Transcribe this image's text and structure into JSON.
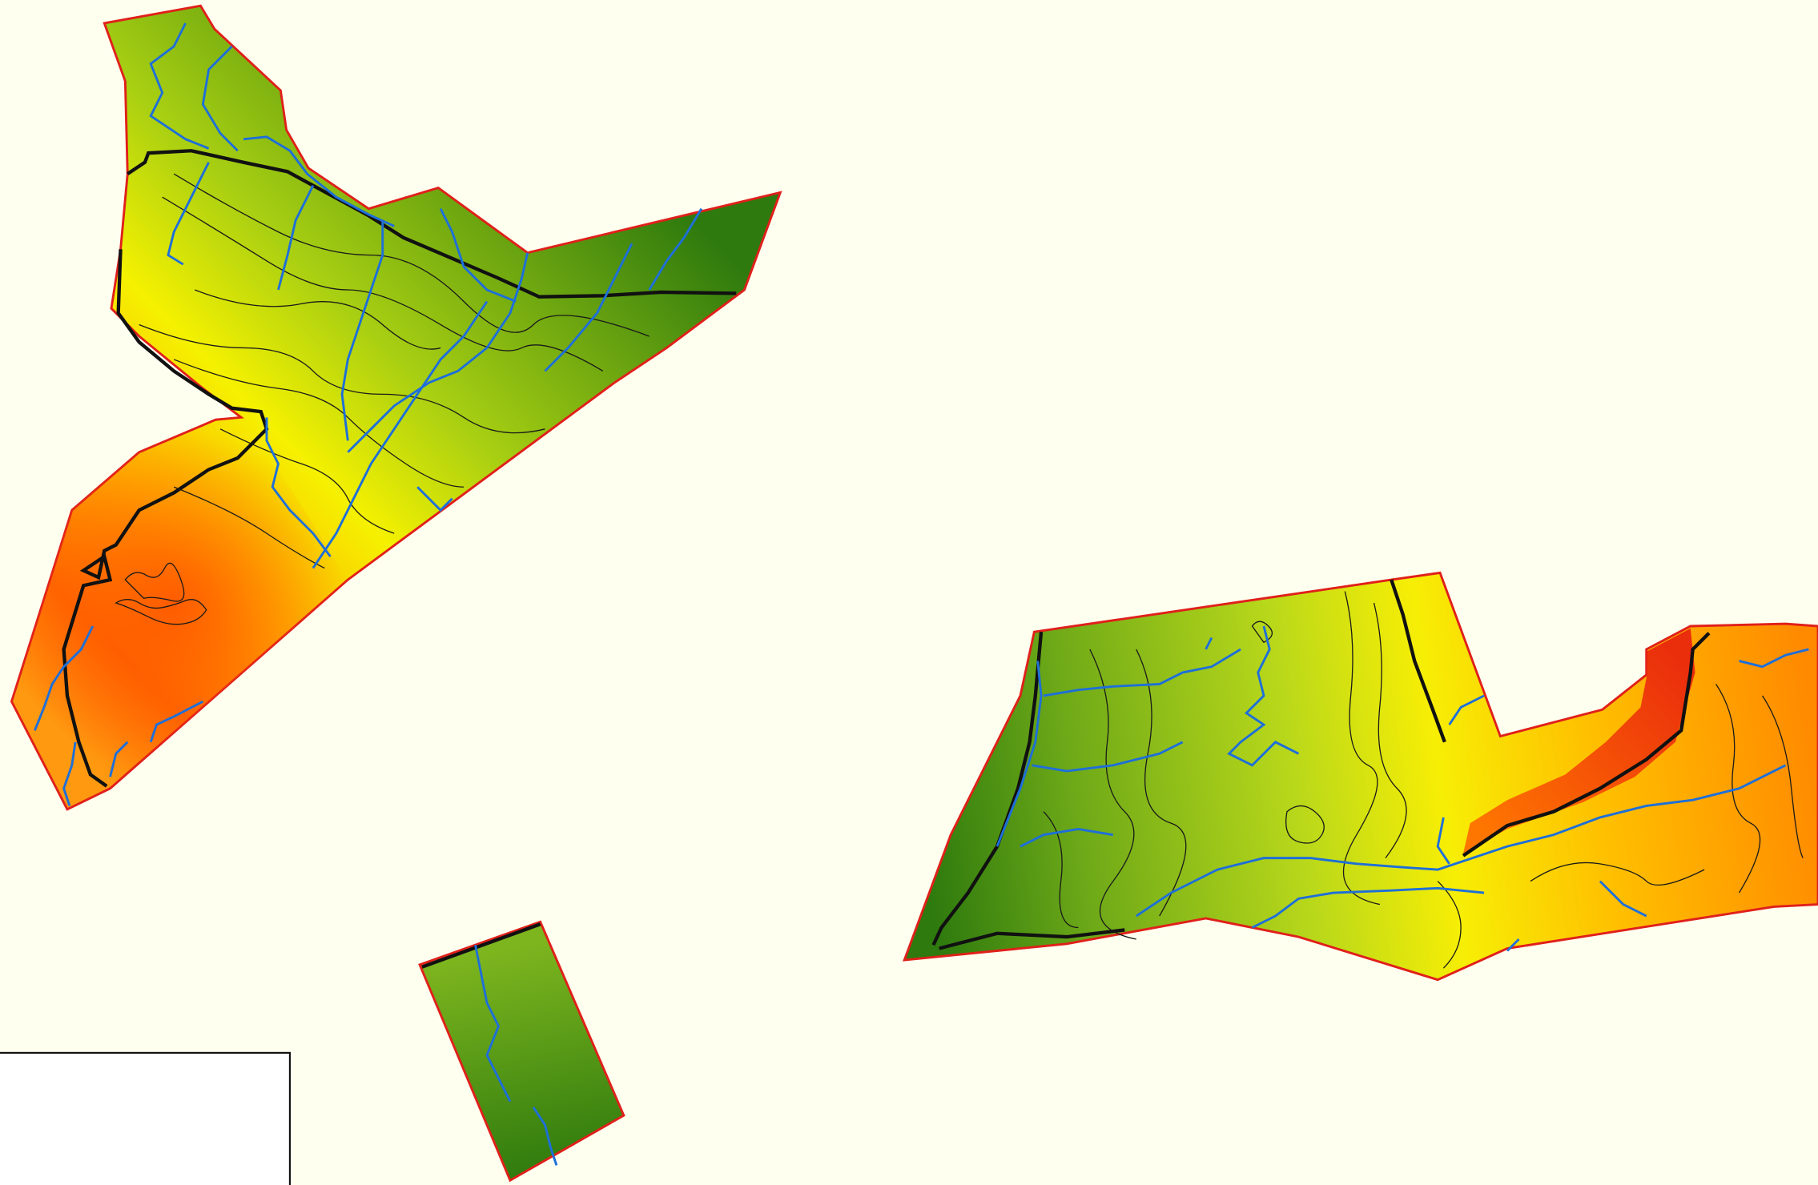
{
  "map": {
    "background_color": "#FFFFF0",
    "boundary_color": "#E0201A",
    "outline_color": "#111111",
    "stream_color": "#1E6FD9",
    "contour_color": "#1A1A1A",
    "elevation_ramp": [
      "#2E7A0E",
      "#7DB51E",
      "#FFF200",
      "#FF9A00",
      "#FF4A00"
    ],
    "highlight_color": "#F23A12",
    "layers": [
      "elevation-raster",
      "parcel-boundary",
      "study-area-outline",
      "contours",
      "streams",
      "legend-box"
    ]
  }
}
